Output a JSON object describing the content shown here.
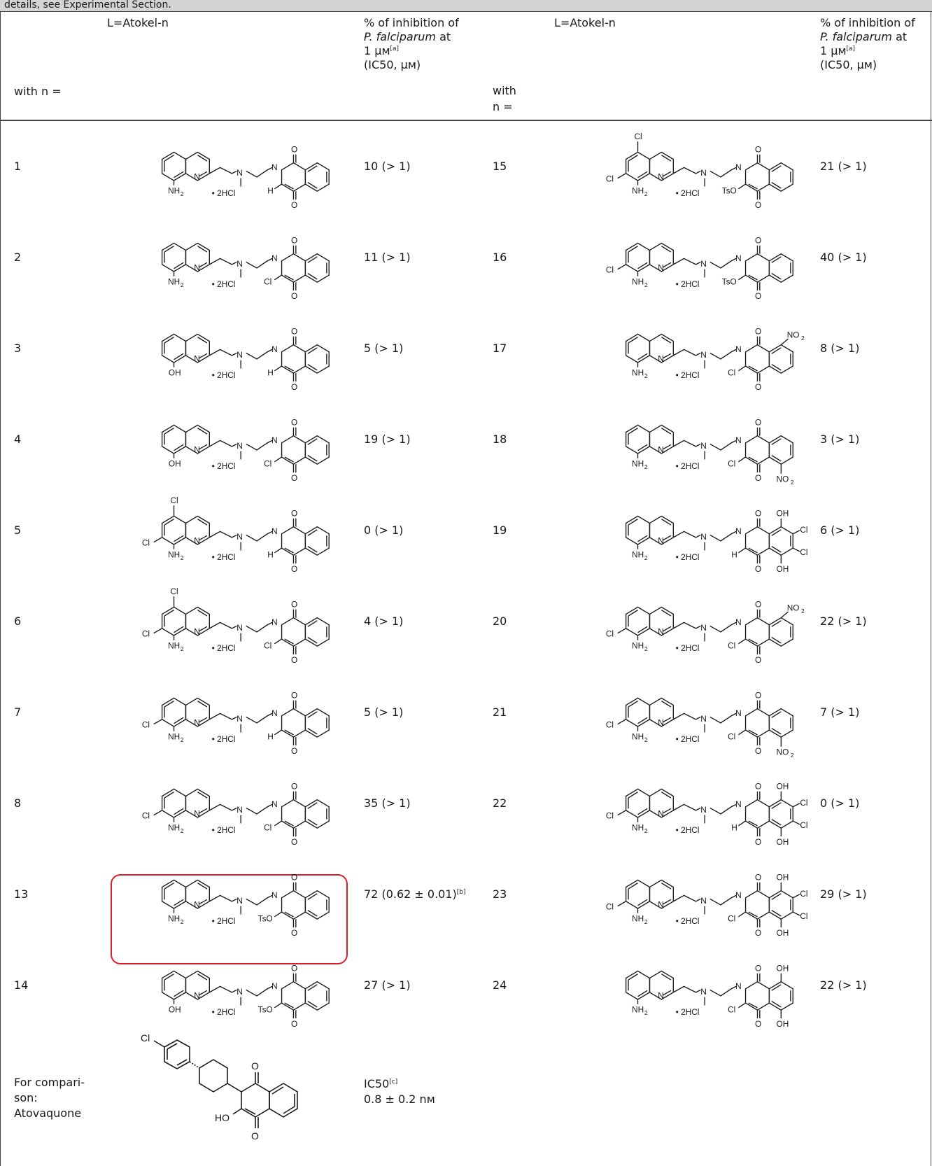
{
  "caption_fragment": "details, see Experimental Section.",
  "header": {
    "left": {
      "ligand": "L=Atokel-n",
      "inhibition_lines": [
        "% of inhibition of",
        "P. falciparum",
        "at",
        "1 μм",
        "[a]",
        "(IC50, μм)"
      ],
      "n": "with n ="
    },
    "right": {
      "ligand": "L=Atokel-n",
      "inhibition_lines": [
        "% of inhibition of",
        "P. falciparum",
        "at",
        "1 μм",
        "[a]",
        "(IC50, μм)"
      ],
      "n_line1": "with",
      "n_line2": "n ="
    }
  },
  "salt": "• 2HCl",
  "rows_left": [
    {
      "n": "1",
      "value": "10 (> 1)",
      "amine": "NH2",
      "cl5": false,
      "cl7": false,
      "r3": "H",
      "extra": "none"
    },
    {
      "n": "2",
      "value": "11 (> 1)",
      "amine": "NH2",
      "cl5": false,
      "cl7": false,
      "r3": "Cl",
      "extra": "none"
    },
    {
      "n": "3",
      "value": "5 (> 1)",
      "amine": "OH",
      "cl5": false,
      "cl7": false,
      "r3": "H",
      "extra": "none"
    },
    {
      "n": "4",
      "value": "19 (> 1)",
      "amine": "OH",
      "cl5": false,
      "cl7": false,
      "r3": "Cl",
      "extra": "none"
    },
    {
      "n": "5",
      "value": "0 (> 1)",
      "amine": "NH2",
      "cl5": true,
      "cl7": true,
      "r3": "H",
      "extra": "none"
    },
    {
      "n": "6",
      "value": "4 (> 1)",
      "amine": "NH2",
      "cl5": true,
      "cl7": true,
      "r3": "Cl",
      "extra": "none"
    },
    {
      "n": "7",
      "value": "5 (> 1)",
      "amine": "NH2",
      "cl5": false,
      "cl7": true,
      "r3": "H",
      "extra": "none"
    },
    {
      "n": "8",
      "value": "35 (> 1)",
      "amine": "NH2",
      "cl5": false,
      "cl7": true,
      "r3": "Cl",
      "extra": "none"
    },
    {
      "n": "13",
      "value": "72 (0.62 ± 0.01)",
      "value_sup": "[b]",
      "amine": "NH2",
      "cl5": false,
      "cl7": false,
      "r3": "TsO",
      "extra": "none",
      "highlight": true
    },
    {
      "n": "14",
      "value": "27 (> 1)",
      "amine": "OH",
      "cl5": false,
      "cl7": false,
      "r3": "TsO",
      "extra": "none"
    }
  ],
  "rows_right": [
    {
      "n": "15",
      "value": "21 (> 1)",
      "amine": "NH2",
      "cl5": true,
      "cl7": true,
      "r3": "TsO",
      "extra": "none"
    },
    {
      "n": "16",
      "value": "40 (> 1)",
      "amine": "NH2",
      "cl5": false,
      "cl7": true,
      "r3": "TsO",
      "extra": "none"
    },
    {
      "n": "17",
      "value": "8 (> 1)",
      "amine": "NH2",
      "cl5": false,
      "cl7": false,
      "r3": "Cl",
      "extra": "no2top"
    },
    {
      "n": "18",
      "value": "3 (> 1)",
      "amine": "NH2",
      "cl5": false,
      "cl7": false,
      "r3": "Cl",
      "extra": "no2bot"
    },
    {
      "n": "19",
      "value": "6 (> 1)",
      "amine": "NH2",
      "cl5": false,
      "cl7": false,
      "r3": "H",
      "extra": "ohcl"
    },
    {
      "n": "20",
      "value": "22 (> 1)",
      "amine": "NH2",
      "cl5": false,
      "cl7": true,
      "r3": "Cl",
      "extra": "no2top"
    },
    {
      "n": "21",
      "value": "7 (> 1)",
      "amine": "NH2",
      "cl5": false,
      "cl7": true,
      "r3": "Cl",
      "extra": "no2bot"
    },
    {
      "n": "22",
      "value": "0 (> 1)",
      "amine": "NH2",
      "cl5": false,
      "cl7": true,
      "r3": "H",
      "extra": "ohcl"
    },
    {
      "n": "23",
      "value": "29 (> 1)",
      "amine": "NH2",
      "cl5": false,
      "cl7": true,
      "r3": "Cl",
      "extra": "ohcl"
    },
    {
      "n": "24",
      "value": "22 (> 1)",
      "amine": "NH2",
      "cl5": false,
      "cl7": false,
      "r3": "Cl",
      "extra": "oh"
    }
  ],
  "comparison": {
    "label_lines": [
      "For compari-",
      "son:",
      "Atovaquone"
    ],
    "value_label": "IC50",
    "value_label_sup": "[c]",
    "value": "0.8 ± 0.2 nм",
    "atoms": {
      "cl": "Cl",
      "ho": "HO",
      "o": "O"
    }
  }
}
